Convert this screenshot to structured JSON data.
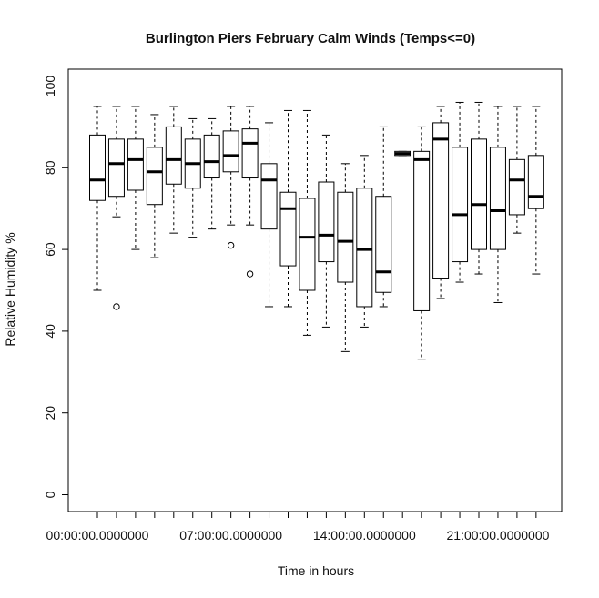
{
  "chart_data": {
    "type": "boxplot",
    "title": "Burlington Piers February Calm Winds (Temps<=0)",
    "xlabel": "Time in hours",
    "ylabel": "Relative Humidity %",
    "ylim": [
      0,
      100
    ],
    "yticks": [
      0,
      20,
      40,
      60,
      80,
      100
    ],
    "x_tick_labels": [
      "00:00:00.0000000",
      "07:00:00.0000000",
      "14:00:00.0000000",
      "21:00:00.0000000"
    ],
    "x_tick_positions": [
      1,
      8,
      15,
      22
    ],
    "grid": false,
    "boxes": [
      {
        "pos": 1,
        "min": 50,
        "q1": 72,
        "median": 77,
        "q3": 88,
        "max": 95,
        "outliers": []
      },
      {
        "pos": 2,
        "min": 68,
        "q1": 73,
        "median": 81,
        "q3": 87,
        "max": 95,
        "outliers": [
          46
        ]
      },
      {
        "pos": 3,
        "min": 60,
        "q1": 74.5,
        "median": 82,
        "q3": 87,
        "max": 95,
        "outliers": []
      },
      {
        "pos": 4,
        "min": 58,
        "q1": 71,
        "median": 79,
        "q3": 85,
        "max": 93,
        "outliers": []
      },
      {
        "pos": 5,
        "min": 64,
        "q1": 76,
        "median": 82,
        "q3": 90,
        "max": 95,
        "outliers": []
      },
      {
        "pos": 6,
        "min": 63,
        "q1": 75,
        "median": 81,
        "q3": 87,
        "max": 92,
        "outliers": []
      },
      {
        "pos": 7,
        "min": 65,
        "q1": 77.5,
        "median": 81.5,
        "q3": 88,
        "max": 92,
        "outliers": []
      },
      {
        "pos": 8,
        "min": 66,
        "q1": 79,
        "median": 83,
        "q3": 89,
        "max": 95,
        "outliers": [
          61
        ]
      },
      {
        "pos": 9,
        "min": 66,
        "q1": 77.5,
        "median": 86,
        "q3": 89.5,
        "max": 95,
        "outliers": [
          54
        ]
      },
      {
        "pos": 10,
        "min": 46,
        "q1": 65,
        "median": 77,
        "q3": 81,
        "max": 91,
        "outliers": []
      },
      {
        "pos": 11,
        "min": 46,
        "q1": 56,
        "median": 70,
        "q3": 74,
        "max": 94,
        "outliers": []
      },
      {
        "pos": 12,
        "min": 39,
        "q1": 50,
        "median": 63,
        "q3": 72.5,
        "max": 94,
        "outliers": []
      },
      {
        "pos": 13,
        "min": 41,
        "q1": 57,
        "median": 63.5,
        "q3": 76.5,
        "max": 88,
        "outliers": []
      },
      {
        "pos": 14,
        "min": 35,
        "q1": 52,
        "median": 62,
        "q3": 74,
        "max": 81,
        "outliers": []
      },
      {
        "pos": 15,
        "min": 41,
        "q1": 46,
        "median": 60,
        "q3": 75,
        "max": 83,
        "outliers": []
      },
      {
        "pos": 16,
        "min": 46,
        "q1": 49.5,
        "median": 54.5,
        "q3": 73,
        "max": 90,
        "outliers": []
      },
      {
        "pos": 17,
        "min": 83,
        "q1": 83,
        "median": 83.5,
        "q3": 84,
        "max": 84,
        "outliers": []
      },
      {
        "pos": 18,
        "min": 33,
        "q1": 45,
        "median": 82,
        "q3": 84,
        "max": 90,
        "outliers": []
      },
      {
        "pos": 19,
        "min": 48,
        "q1": 53,
        "median": 87,
        "q3": 91,
        "max": 95,
        "outliers": []
      },
      {
        "pos": 20,
        "min": 52,
        "q1": 57,
        "median": 68.5,
        "q3": 85,
        "max": 96,
        "outliers": []
      },
      {
        "pos": 21,
        "min": 54,
        "q1": 60,
        "median": 71,
        "q3": 87,
        "max": 96,
        "outliers": []
      },
      {
        "pos": 22,
        "min": 47,
        "q1": 60,
        "median": 69.5,
        "q3": 85,
        "max": 95,
        "outliers": []
      },
      {
        "pos": 23,
        "min": 64,
        "q1": 68.5,
        "median": 77,
        "q3": 82,
        "max": 95,
        "outliers": []
      },
      {
        "pos": 24,
        "min": 54,
        "q1": 70,
        "median": 73,
        "q3": 83,
        "max": 95,
        "outliers": []
      }
    ]
  }
}
